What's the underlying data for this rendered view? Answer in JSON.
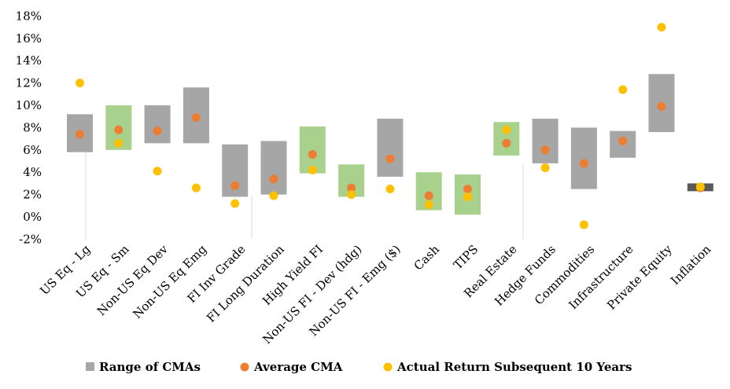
{
  "chart_data": {
    "type": "floating-bar-with-points",
    "title": "",
    "xlabel": "",
    "ylabel": "",
    "ylim": [
      -2,
      18
    ],
    "y_ticks": [
      -2,
      0,
      2,
      4,
      6,
      8,
      10,
      12,
      14,
      16,
      18
    ],
    "y_tick_format": "percent",
    "grid": false,
    "legend_position": "bottom",
    "categories": [
      "US Eq - Lg",
      "US Eq - Sm",
      "Non-US Eq Dev",
      "Non-US Eq Emg",
      "FI Inv Grade",
      "FI Long Duration",
      "High Yield FI",
      "Non-US FI - Dev (hdg)",
      "Non-US FI - Emg ($)",
      "Cash",
      "TIPS",
      "Real Estate",
      "Hedge Funds",
      "Commodities",
      "Infrastructure",
      "Private Equity",
      "Inflation"
    ],
    "range_low": [
      5.8,
      6.0,
      6.6,
      6.6,
      1.8,
      2.0,
      3.9,
      1.8,
      3.6,
      0.6,
      0.2,
      5.5,
      4.8,
      2.5,
      5.3,
      7.6,
      2.3
    ],
    "range_high": [
      9.2,
      10.0,
      10.0,
      11.6,
      6.5,
      6.8,
      8.1,
      4.7,
      8.8,
      4.0,
      3.8,
      8.5,
      8.8,
      8.0,
      7.7,
      12.8,
      3.0
    ],
    "range_color": [
      "#a6a6a6",
      "#a9d18e",
      "#a6a6a6",
      "#a6a6a6",
      "#a6a6a6",
      "#a6a6a6",
      "#a9d18e",
      "#a9d18e",
      "#a6a6a6",
      "#a9d18e",
      "#a9d18e",
      "#a9d18e",
      "#a6a6a6",
      "#a6a6a6",
      "#a6a6a6",
      "#a6a6a6",
      "#595959"
    ],
    "average_cma": [
      7.4,
      7.8,
      7.7,
      8.9,
      2.8,
      3.4,
      5.6,
      2.6,
      5.2,
      1.9,
      2.5,
      6.6,
      6.0,
      4.8,
      6.8,
      9.9,
      2.6
    ],
    "actual_return_10y": [
      12.0,
      6.6,
      4.1,
      2.6,
      1.2,
      1.9,
      4.2,
      2.0,
      2.5,
      1.1,
      1.8,
      7.8,
      4.4,
      -0.7,
      11.4,
      17.0,
      2.7
    ],
    "series": [
      {
        "name": "Range of CMAs",
        "color": "#a6a6a6"
      },
      {
        "name": "Average CMA",
        "color": "#ed7d31"
      },
      {
        "name": "Actual Return Subsequent 10 Years",
        "color": "#ffc000"
      }
    ]
  }
}
